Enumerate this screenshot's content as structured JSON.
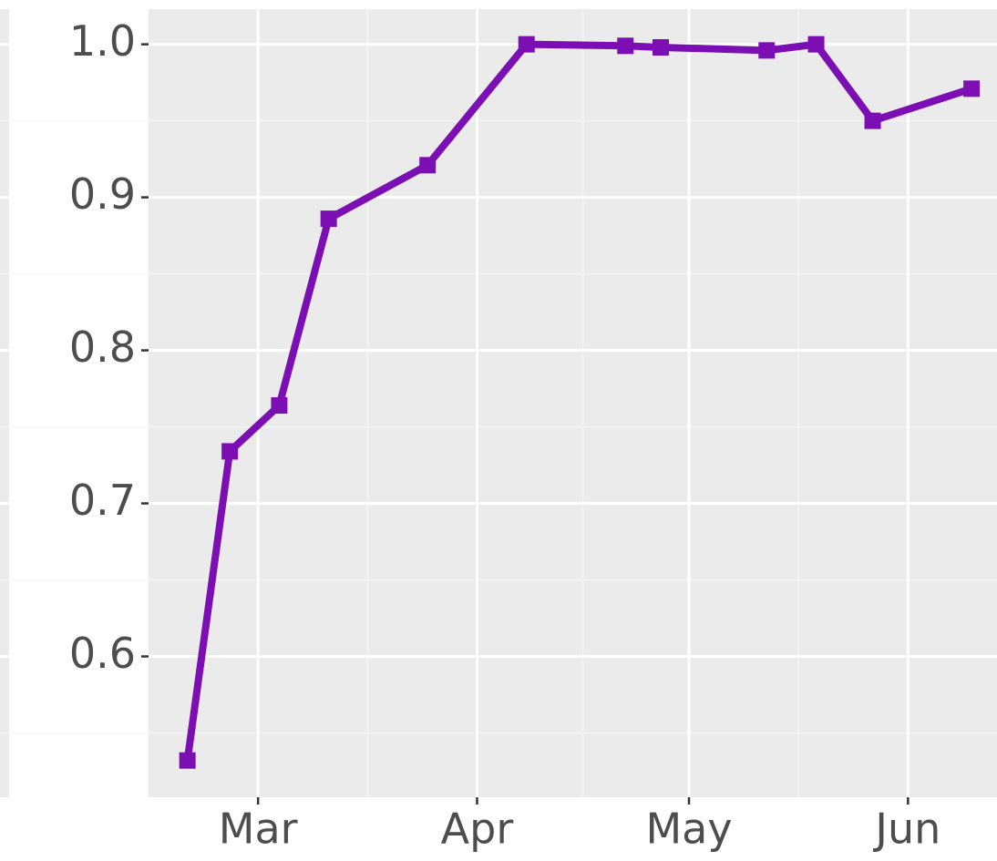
{
  "chart_data": {
    "type": "line",
    "x": [
      50,
      56,
      63,
      70,
      84,
      98,
      112,
      117,
      132,
      139,
      147,
      161
    ],
    "series": [
      {
        "color": "#7b0fb3",
        "marker": "square",
        "values": [
          0.532,
          0.734,
          0.764,
          0.886,
          0.921,
          1.0,
          0.999,
          0.998,
          0.996,
          1.0,
          0.95,
          0.971
        ]
      }
    ],
    "xlim": [
      44.5,
      164.6
    ],
    "xticks": [
      {
        "value": 60,
        "label": "Mar"
      },
      {
        "value": 91,
        "label": "Apr"
      },
      {
        "value": 121,
        "label": "May"
      },
      {
        "value": 152,
        "label": "Jun"
      }
    ],
    "ylim": [
      0.508,
      1.023
    ],
    "yticks": [
      0.6,
      0.7,
      0.8,
      0.9,
      {
        "value": 1.0,
        "label": "1.0"
      }
    ],
    "grid": true
  }
}
